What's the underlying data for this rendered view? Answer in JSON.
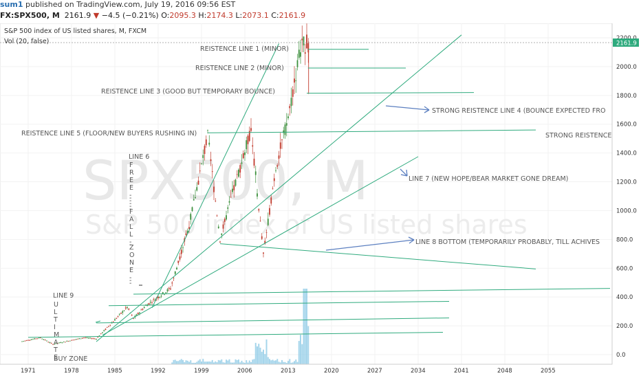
{
  "header": {
    "user": "sum1",
    "published": " published on TradingView.com, July 19, 2016 09:56 EST"
  },
  "ohlc": {
    "symbol": "FX:SPX500, M",
    "last": "2161.9",
    "change": "−4.5 (−0.21%)",
    "o_label": "O:",
    "o": "2095.3",
    "h_label": "H:",
    "h": "2174.3",
    "l_label": "L:",
    "l": "2073.1",
    "c_label": "C:",
    "c": "2161.9"
  },
  "legend": {
    "title": "S&P 500 index of US listed shares, M, FXCM",
    "vol": "Vol (20, false)"
  },
  "watermark": {
    "line1": "SPX500, M",
    "line2": "S&P 500 index of US listed shares"
  },
  "price_badge": "2161.9",
  "colors": {
    "trendline": "#2eaa7d",
    "arrow": "#5b7fc0",
    "candle_up": "#3c8f3c",
    "candle_down": "#c0392b",
    "volume": "#8ecae6",
    "badge": "#2eaa7d"
  },
  "annotations": [
    "REISTENCE LINE 1 (MINOR)",
    "REISTENCE LINE 2 (MINOR)",
    "REISTENCE LINE 3 (GOOD BUT TEMPORARY BOUNCE)",
    "STRONG REISTENCE LINE 4 (BOUNCE EXPECTED FRO",
    "REISTENCE LINE 5 (FLOOR/NEW BUYERS RUSHING IN)",
    "STRONG REISTENCE",
    "LINE 7 (NEW HOPE/BEAR MARKET GONE DREAM)",
    "LINE 8 BOTTOM (TEMPORARILY PROBABLY, TILL ACHIVES",
    "LINE 6",
    "FREE------FALL--ZONE---",
    "LINE 9",
    "ULTIMATE",
    "BUY ZONE"
  ],
  "chart_data": {
    "type": "candlestick",
    "x_ticks": [
      "1971",
      "1978",
      "1985",
      "1992",
      "1999",
      "2006",
      "2013",
      "2020",
      "2027",
      "2034",
      "2041",
      "2048",
      "2055"
    ],
    "y_ticks": [
      "2200.0",
      "2000.0",
      "1800.0",
      "1600.0",
      "1400.0",
      "1200.0",
      "1000.0",
      "800.0",
      "600.0",
      "400.0",
      "200.0",
      "0.0"
    ],
    "ylim": [
      0,
      2200
    ],
    "last_price": 2161.9,
    "price_path": [
      [
        1970,
        92
      ],
      [
        1973,
        118
      ],
      [
        1975,
        72
      ],
      [
        1980,
        118
      ],
      [
        1982,
        110
      ],
      [
        1987,
        330
      ],
      [
        1988,
        250
      ],
      [
        1990,
        340
      ],
      [
        1994,
        460
      ],
      [
        1997,
        900
      ],
      [
        2000,
        1520
      ],
      [
        2002,
        800
      ],
      [
        2004,
        1120
      ],
      [
        2007,
        1560
      ],
      [
        2009,
        700
      ],
      [
        2011,
        1300
      ],
      [
        2013,
        1650
      ],
      [
        2015,
        2130
      ],
      [
        2016,
        2162
      ]
    ],
    "lines": [
      {
        "label": "REISTENCE LINE 1 (MINOR)",
        "x": [
          2016.2,
          2026.0
        ],
        "y": [
          2120,
          2120
        ]
      },
      {
        "label": "REISTENCE LINE 2 (MINOR)",
        "x": [
          2016.2,
          2032.0
        ],
        "y": [
          1990,
          1990
        ]
      },
      {
        "label": "REISTENCE LINE 3 (GOOD BUT TEMPORARY BOUNCE)",
        "x": [
          2016.0,
          2043.0
        ],
        "y": [
          1815,
          1820
        ]
      },
      {
        "label": "REISTENCE LINE 5 (FLOOR/NEW BUYERS RUSHING IN)",
        "x": [
          2000.0,
          2053.0
        ],
        "y": [
          1540,
          1560
        ]
      },
      {
        "label": "STRONG REISTENCE LINE 4",
        "x": [
          1982.0,
          2041.0
        ],
        "y": [
          90,
          2220
        ]
      },
      {
        "label": "LINE 6",
        "x": [
          1991.0,
          2011.5
        ],
        "y": [
          325,
          2160
        ]
      },
      {
        "label": "LINE 7 (NEW HOPE/BEAR MARKET GONE DREAM)",
        "x": [
          1983.0,
          2034.0
        ],
        "y": [
          135,
          1375
        ]
      },
      {
        "label": "LINE 8 BOTTOM",
        "x": [
          2002.0,
          2053.0
        ],
        "y": [
          770,
          595
        ]
      },
      {
        "label": "LINE 9 a",
        "x": [
          1988.0,
          2065.0
        ],
        "y": [
          420,
          460
        ]
      },
      {
        "label": "LINE 9 b",
        "x": [
          1984.0,
          2039.0
        ],
        "y": [
          340,
          370
        ]
      },
      {
        "label": "LINE 9 c",
        "x": [
          1982.0,
          2039.0
        ],
        "y": [
          220,
          255
        ]
      },
      {
        "label": "LINE 9 d",
        "x": [
          1971.0,
          2038.0
        ],
        "y": [
          120,
          155
        ]
      }
    ]
  }
}
